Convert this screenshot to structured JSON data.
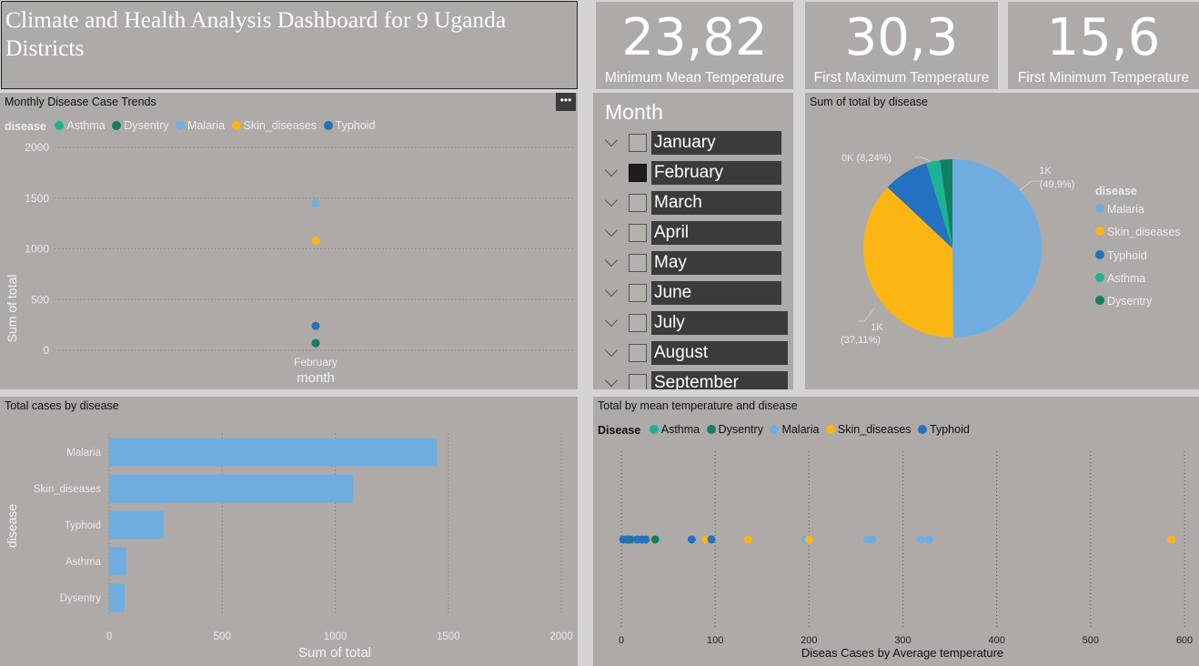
{
  "title": "Climate and Health Analysis Dashboard for 9 Uganda Districts",
  "kpis": [
    {
      "value": "23,82",
      "label": "Minimum Mean Temperature"
    },
    {
      "value": "30,3",
      "label": "First Maximum Temperature"
    },
    {
      "value": "15,6",
      "label": "First Minimum Temperature"
    }
  ],
  "colors": {
    "Asthma": "#1bb394",
    "Dysentry": "#127f65",
    "Malaria": "#6fade0",
    "Skin_diseases": "#fbb614",
    "Typhoid": "#2471c0"
  },
  "more_options_icon": "ellipsis-icon",
  "trend": {
    "title": "Monthly Disease Case Trends",
    "legend_title": "disease",
    "legend": [
      "Asthma",
      "Dysentry",
      "Malaria",
      "Skin_diseases",
      "Typhoid"
    ],
    "ylabel": "Sum of total",
    "xlabel": "month",
    "yticks": [
      "2000",
      "1500",
      "1000",
      "500",
      "0"
    ],
    "xtick": "February"
  },
  "slicer": {
    "title": "Month",
    "items": [
      "January",
      "February",
      "March",
      "April",
      "May",
      "June",
      "July",
      "August",
      "September"
    ],
    "checked": "February"
  },
  "pie": {
    "title": "Sum of total by disease",
    "legend_title": "disease",
    "legend": [
      "Malaria",
      "Skin_diseases",
      "Typhoid",
      "Asthma",
      "Dysentry"
    ],
    "label_malaria_value": "1K",
    "label_malaria_pct": "(49,9%)",
    "label_skin_value": "1K",
    "label_skin_pct": "(37,11%)",
    "label_small": "0K (8,24%)"
  },
  "bar": {
    "title": "Total cases by disease",
    "ylabel": "disease",
    "xlabel": "Sum of total",
    "xticks": [
      "0",
      "500",
      "1000",
      "1500",
      "2000"
    ]
  },
  "scatter": {
    "title": "Total by mean temperature and disease",
    "legend_title": "Disease",
    "legend": [
      "Asthma",
      "Dysentry",
      "Malaria",
      "Skin_diseases",
      "Typhoid"
    ],
    "xlabel": "Diseas Cases by Average temperature",
    "xticks": [
      "0",
      "100",
      "200",
      "300",
      "400",
      "500",
      "600"
    ]
  },
  "chart_data": [
    {
      "type": "scatter",
      "title": "Monthly Disease Case Trends",
      "xlabel": "month",
      "ylabel": "Sum of total",
      "ylim": [
        0,
        2000
      ],
      "x": [
        "February"
      ],
      "series": [
        {
          "name": "Malaria",
          "values": [
            1450
          ]
        },
        {
          "name": "Skin_diseases",
          "values": [
            1080
          ]
        },
        {
          "name": "Typhoid",
          "values": [
            240
          ]
        },
        {
          "name": "Asthma",
          "values": [
            75
          ]
        },
        {
          "name": "Dysentry",
          "values": [
            70
          ]
        }
      ]
    },
    {
      "type": "pie",
      "title": "Sum of total by disease",
      "categories": [
        "Malaria",
        "Skin_diseases",
        "Typhoid",
        "Asthma",
        "Dysentry"
      ],
      "values": [
        49.9,
        37.11,
        8.24,
        2.5,
        2.25
      ]
    },
    {
      "type": "bar",
      "title": "Total cases by disease",
      "xlabel": "Sum of total",
      "ylabel": "disease",
      "xlim": [
        0,
        2000
      ],
      "categories": [
        "Malaria",
        "Skin_diseases",
        "Typhoid",
        "Asthma",
        "Dysentry"
      ],
      "values": [
        1450,
        1080,
        240,
        75,
        68
      ]
    },
    {
      "type": "scatter",
      "title": "Total by mean temperature and disease",
      "xlabel": "Diseas Cases by Average temperature",
      "xlim": [
        0,
        600
      ],
      "series": [
        {
          "name": "Asthma",
          "x": [
            5,
            12
          ]
        },
        {
          "name": "Dysentry",
          "x": [
            9,
            36
          ]
        },
        {
          "name": "Malaria",
          "x": [
            3,
            18,
            94,
            196,
            262,
            267,
            319,
            328
          ]
        },
        {
          "name": "Skin_diseases",
          "x": [
            35,
            90,
            135,
            200,
            586
          ]
        },
        {
          "name": "Typhoid",
          "x": [
            2,
            7,
            17,
            22,
            26,
            75,
            96
          ]
        }
      ]
    }
  ]
}
